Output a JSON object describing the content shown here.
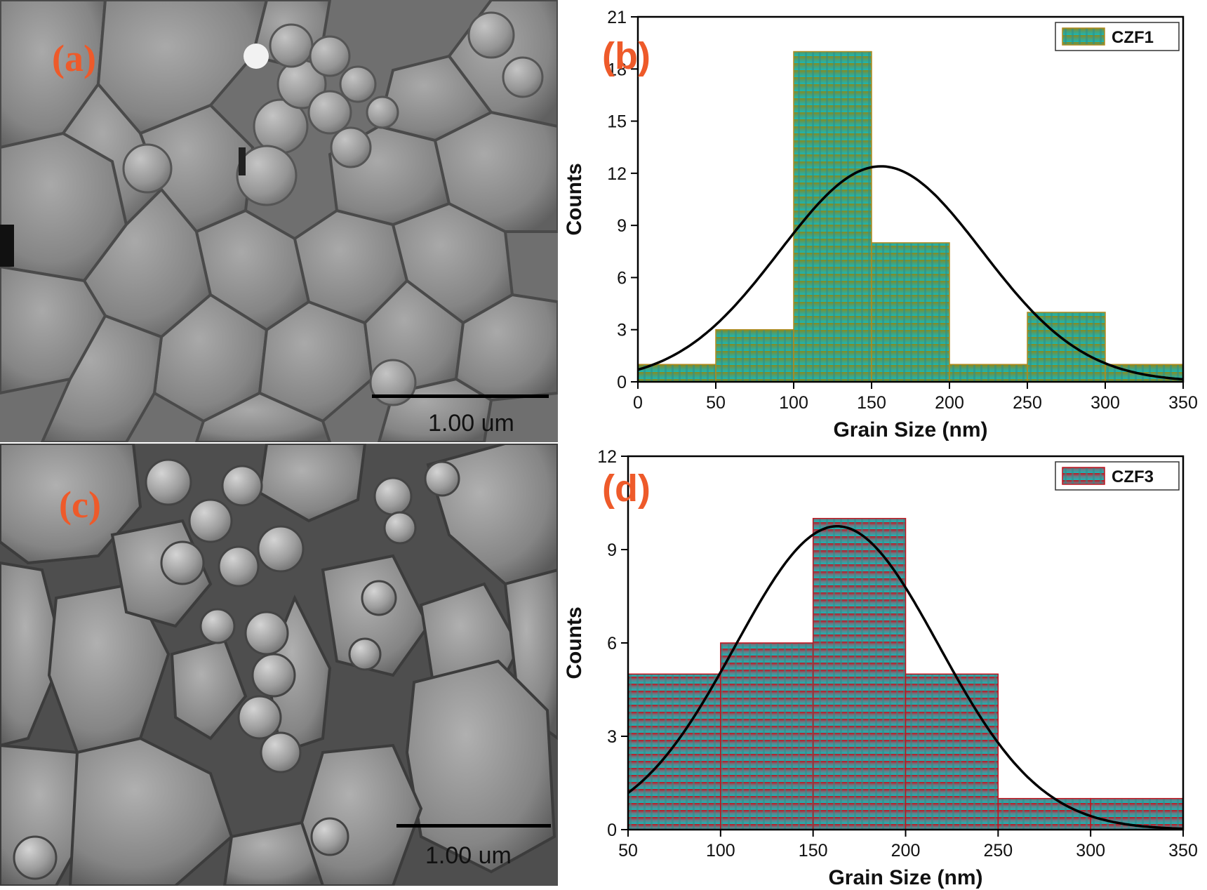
{
  "panels": {
    "a": {
      "label": "(a)",
      "scale_bar": "1.00 um"
    },
    "c": {
      "label": "(c)",
      "scale_bar": "1.00 um"
    },
    "b": {
      "label": "(b)"
    },
    "d": {
      "label": "(d)"
    }
  },
  "colors": {
    "label": "#ee5a2a",
    "olive": "#8a8a1e",
    "teal": "#19b7b4",
    "red": "#c0141e",
    "curve": "#000000"
  },
  "chart_data": [
    {
      "type": "bar",
      "panel": "b",
      "xlabel": "Grain Size (nm)",
      "ylabel": "Counts",
      "xlim": [
        0,
        350
      ],
      "ylim": [
        0,
        21
      ],
      "xticks": [
        0,
        50,
        100,
        150,
        200,
        250,
        300,
        350
      ],
      "yticks": [
        0,
        3,
        6,
        9,
        12,
        15,
        18,
        21
      ],
      "bin_edges": [
        0,
        50,
        100,
        150,
        200,
        250,
        300,
        350
      ],
      "series": [
        {
          "name": "CZF1",
          "values": [
            1,
            3,
            19,
            8,
            1,
            4,
            1
          ]
        }
      ],
      "fit": {
        "type": "gaussian",
        "mean": 156,
        "sigma": 65,
        "peak": 12.4
      },
      "legend": "top-right",
      "grid": false
    },
    {
      "type": "bar",
      "panel": "d",
      "xlabel": "Grain Size (nm)",
      "ylabel": "Counts",
      "xlim": [
        50,
        350
      ],
      "ylim": [
        0,
        12
      ],
      "xticks": [
        50,
        100,
        150,
        200,
        250,
        300,
        350
      ],
      "yticks": [
        0,
        3,
        6,
        9,
        12
      ],
      "bin_edges": [
        50,
        100,
        150,
        200,
        250,
        300,
        350
      ],
      "series": [
        {
          "name": "CZF3",
          "values": [
            5,
            6,
            10,
            5,
            1,
            1
          ]
        }
      ],
      "fit": {
        "type": "gaussian",
        "mean": 163,
        "sigma": 55,
        "peak": 9.75
      },
      "legend": "top-right",
      "grid": false
    }
  ]
}
